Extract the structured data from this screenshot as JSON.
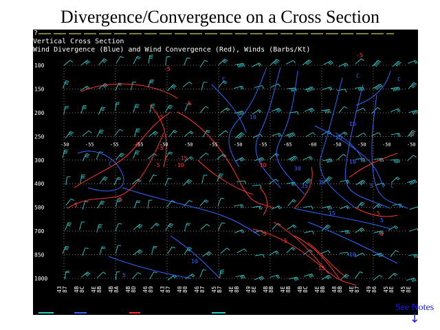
{
  "slide": {
    "title": "Divergence/Convergence on a Cross Section",
    "see_notes": "See Notes",
    "arrow_icon": "down-arrow-icon"
  },
  "plot": {
    "prompt": "?",
    "title_line1": "Vertical Cross Section",
    "title_line2": "Wind Divergence (Blue) and Wind Convergence (Red), Winds (Barbs/Kt)",
    "pressure_levels": [
      "100",
      "150",
      "200",
      "250",
      "300",
      "400",
      "500",
      "700",
      "850",
      "1000"
    ],
    "x_labels": [
      [
        "43",
        "87"
      ],
      [
        "4B",
        "8C"
      ],
      [
        "4E",
        "8B"
      ],
      [
        "4B",
        "8A"
      ],
      [
        "4B",
        "8D"
      ],
      [
        "46",
        "89"
      ],
      [
        "43",
        "87"
      ],
      [
        "40",
        "80"
      ],
      [
        "46",
        "87"
      ],
      [
        "45",
        "B7"
      ],
      [
        "4E",
        "8B"
      ],
      [
        "49",
        "8E"
      ],
      [
        "4B",
        "8B"
      ],
      [
        "4E",
        "8B"
      ],
      [
        "4B",
        "8C"
      ],
      [
        "4E",
        "8B"
      ],
      [
        "48",
        "8B"
      ],
      [
        "4E",
        "87"
      ],
      [
        "49",
        "86"
      ],
      [
        "45",
        "8E"
      ],
      [
        "45",
        "8E"
      ]
    ],
    "contour_labels_red": [
      "-5",
      "-5",
      "-5",
      "-5",
      "-5",
      "-5",
      "-10",
      "-15",
      "-5",
      "-10",
      "-5",
      "-5",
      "-5",
      "-5",
      "-5",
      "-15",
      "-5",
      "-5"
    ],
    "contour_labels_blue": [
      "C",
      "C",
      "10",
      "15",
      "20",
      "30",
      "C",
      "C",
      "30",
      "35",
      "10",
      "15",
      "10",
      "5",
      "5",
      "10",
      "5",
      "C",
      "C"
    ],
    "row_250_labels": [
      "-50",
      "-55",
      "-55",
      "-55",
      "-50",
      "-50",
      "-55",
      "-50",
      "-55",
      "-65",
      "-60",
      "-50",
      "-50",
      "-50",
      "-50"
    ],
    "colors": {
      "background": "#000000",
      "divergence": "#3366ff",
      "convergence": "#ff3333",
      "barbs": "#33cccc",
      "grid": "#cccccc",
      "text": "#ffffff",
      "link": "#1a1aff"
    }
  }
}
